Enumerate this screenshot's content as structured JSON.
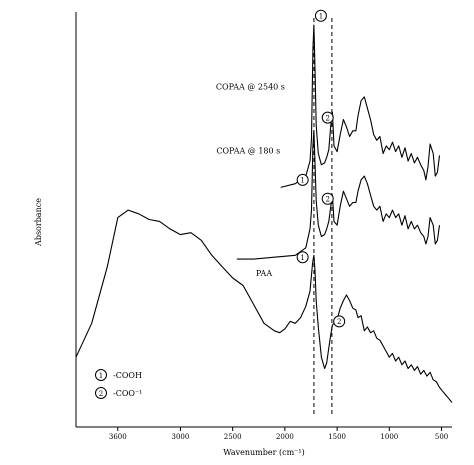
{
  "chart_data": {
    "type": "line",
    "title": "",
    "xlabel": "Wavenumber (cm⁻¹)",
    "ylabel": "Absorbance",
    "xlim": [
      4000,
      400
    ],
    "x_reversed": true,
    "x_tick_labels": [
      "3600",
      "3000",
      "2500",
      "2000",
      "1500",
      "1000",
      "500"
    ],
    "y_ticks_shown": false,
    "grid": false,
    "series": [
      {
        "name": "COPAA @ 2540 s",
        "x": [
          2040,
          1900,
          1800,
          1760,
          1745,
          1732,
          1722,
          1712,
          1700,
          1680,
          1650,
          1620,
          1600,
          1580,
          1560,
          1545,
          1530,
          1500,
          1470,
          1440,
          1410,
          1380,
          1350,
          1320,
          1300,
          1270,
          1240,
          1210,
          1180,
          1150,
          1120,
          1090,
          1060,
          1030,
          1000,
          970,
          940,
          910,
          880,
          850,
          820,
          790,
          760,
          730,
          700,
          670,
          650,
          630,
          610,
          580,
          560,
          540,
          520
        ],
        "y": [
          0.82,
          0.84,
          0.88,
          0.96,
          1.08,
          1.55,
          1.68,
          1.45,
          1.15,
          1.0,
          0.94,
          0.95,
          0.98,
          1.02,
          1.15,
          1.22,
          1.04,
          1.01,
          1.1,
          1.18,
          1.14,
          1.09,
          1.12,
          1.12,
          1.2,
          1.28,
          1.3,
          1.24,
          1.18,
          1.1,
          1.07,
          1.09,
          1.0,
          1.04,
          1.02,
          1.06,
          1.01,
          1.04,
          0.98,
          1.03,
          0.96,
          1.0,
          0.95,
          0.98,
          0.94,
          0.91,
          0.86,
          0.93,
          1.05,
          1.0,
          0.88,
          0.9,
          0.99
        ]
      },
      {
        "name": "COPAA @ 180 s",
        "x": [
          2460,
          2300,
          2100,
          1900,
          1800,
          1760,
          1745,
          1732,
          1722,
          1712,
          1700,
          1680,
          1650,
          1620,
          1600,
          1580,
          1560,
          1545,
          1530,
          1500,
          1470,
          1440,
          1410,
          1380,
          1350,
          1320,
          1300,
          1270,
          1240,
          1210,
          1180,
          1150,
          1120,
          1090,
          1060,
          1030,
          1000,
          970,
          940,
          910,
          880,
          850,
          820,
          790,
          760,
          730,
          700,
          670,
          650,
          630,
          610,
          580,
          560,
          540,
          520
        ],
        "y": [
          0.44,
          0.44,
          0.45,
          0.46,
          0.5,
          0.6,
          0.7,
          1.04,
          1.12,
          0.95,
          0.75,
          0.62,
          0.56,
          0.57,
          0.6,
          0.64,
          0.72,
          0.78,
          0.64,
          0.62,
          0.72,
          0.8,
          0.76,
          0.72,
          0.74,
          0.74,
          0.8,
          0.86,
          0.88,
          0.84,
          0.78,
          0.72,
          0.7,
          0.72,
          0.64,
          0.68,
          0.66,
          0.7,
          0.66,
          0.68,
          0.62,
          0.67,
          0.6,
          0.64,
          0.6,
          0.62,
          0.58,
          0.56,
          0.52,
          0.56,
          0.66,
          0.62,
          0.52,
          0.54,
          0.62
        ]
      },
      {
        "name": "PAA",
        "x": [
          4000,
          3850,
          3700,
          3600,
          3500,
          3400,
          3300,
          3200,
          3100,
          3000,
          2900,
          2800,
          2700,
          2600,
          2500,
          2400,
          2300,
          2200,
          2100,
          2050,
          2000,
          1950,
          1900,
          1850,
          1800,
          1760,
          1735,
          1722,
          1712,
          1700,
          1680,
          1650,
          1620,
          1600,
          1580,
          1560,
          1545,
          1530,
          1500,
          1470,
          1440,
          1410,
          1380,
          1350,
          1320,
          1300,
          1270,
          1240,
          1210,
          1180,
          1150,
          1120,
          1090,
          1060,
          1030,
          1000,
          970,
          940,
          910,
          880,
          850,
          820,
          790,
          760,
          730,
          700,
          670,
          640,
          610,
          580,
          550,
          520,
          490,
          460,
          430,
          400
        ],
        "y": [
          -0.08,
          0.1,
          0.4,
          0.66,
          0.7,
          0.68,
          0.65,
          0.64,
          0.6,
          0.57,
          0.58,
          0.54,
          0.46,
          0.4,
          0.34,
          0.3,
          0.2,
          0.1,
          0.06,
          0.05,
          0.07,
          0.11,
          0.1,
          0.13,
          0.19,
          0.27,
          0.42,
          0.46,
          0.38,
          0.22,
          0.08,
          -0.08,
          -0.14,
          -0.11,
          -0.03,
          0.04,
          0.09,
          0.1,
          0.12,
          0.18,
          0.22,
          0.25,
          0.22,
          0.18,
          0.17,
          0.13,
          0.14,
          0.06,
          0.08,
          0.05,
          0.06,
          0.02,
          0.01,
          -0.02,
          -0.05,
          -0.08,
          -0.06,
          -0.1,
          -0.08,
          -0.12,
          -0.1,
          -0.14,
          -0.12,
          -0.15,
          -0.13,
          -0.17,
          -0.15,
          -0.18,
          -0.16,
          -0.2,
          -0.21,
          -0.24,
          -0.26,
          -0.28,
          -0.3,
          -0.32
        ]
      }
    ],
    "reference_lines_x": [
      1722,
      1550
    ],
    "markers": [
      {
        "label": "1",
        "x": 1655,
        "y": 1.73
      },
      {
        "label": "2",
        "x": 1590,
        "y": 1.19
      },
      {
        "label": "1",
        "x": 1830,
        "y": 0.86
      },
      {
        "label": "2",
        "x": 1590,
        "y": 0.76
      },
      {
        "label": "1",
        "x": 1830,
        "y": 0.45
      },
      {
        "label": "2",
        "x": 1480,
        "y": 0.11
      }
    ],
    "legend": [
      {
        "label": "1",
        "text": "-COOH"
      },
      {
        "label": "2",
        "text": "-COO⁻¹"
      }
    ]
  }
}
